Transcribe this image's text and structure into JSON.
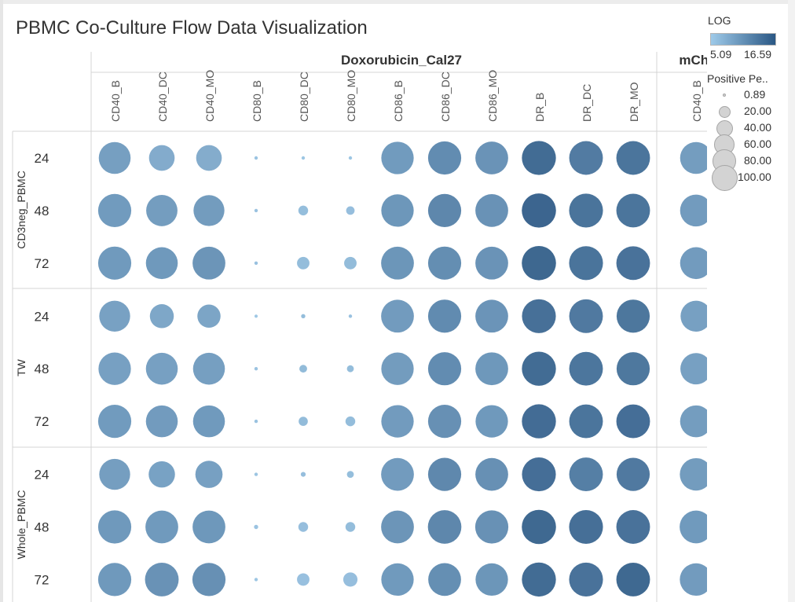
{
  "title": "PBMC Co-Culture Flow Data Visualization",
  "colors": {
    "low": "#9ecae9",
    "high": "#2a5784",
    "grid": "#d4d4d4",
    "legend_circle": "#d3d3d3"
  },
  "chart_data": {
    "type": "scatter",
    "subtype": "bubble-matrix",
    "panels": [
      {
        "header": "Doxorubicin_Cal27",
        "columns": [
          "CD40_B",
          "CD40_DC",
          "CD40_MO",
          "CD80_B",
          "CD80_DC",
          "CD80_MO",
          "CD86_B",
          "CD86_DC",
          "CD86_MO",
          "DR_B",
          "DR_DC",
          "DR_MO"
        ]
      },
      {
        "header": "mChe",
        "columns": [
          "CD40_B"
        ]
      }
    ],
    "row_groups": [
      {
        "label": "CD3neg_PBMC",
        "rows": [
          {
            "label": "24",
            "size": [
              85,
              55,
              55,
              1,
              1,
              1,
              88,
              92,
              90,
              97,
              95,
              95,
              85
            ],
            "log": [
              10.2,
              8.9,
              8.8,
              6.2,
              6.0,
              6.0,
              10.7,
              12.3,
              11.5,
              15.8,
              14.1,
              14.8,
              10.4
            ]
          },
          {
            "label": "48",
            "size": [
              92,
              82,
              80,
              1,
              8,
              6,
              88,
              92,
              90,
              98,
              96,
              95,
              85
            ],
            "log": [
              10.7,
              10.4,
              10.5,
              6.4,
              6.9,
              6.8,
              11.1,
              12.8,
              11.6,
              16.5,
              14.9,
              14.8,
              10.6
            ]
          },
          {
            "label": "72",
            "size": [
              92,
              85,
              90,
              1,
              13,
              13,
              90,
              92,
              90,
              98,
              96,
              95,
              85
            ],
            "log": [
              10.8,
              10.9,
              11.3,
              6.6,
              7.0,
              7.1,
              11.2,
              12.1,
              11.5,
              16.2,
              14.9,
              15.1,
              10.6
            ]
          }
        ]
      },
      {
        "label": "TW",
        "rows": [
          {
            "label": "24",
            "size": [
              80,
              48,
              45,
              0.89,
              1.5,
              1,
              90,
              92,
              90,
              96,
              95,
              92,
              80
            ],
            "log": [
              10.0,
              9.4,
              9.6,
              5.8,
              7.0,
              6.5,
              10.6,
              12.4,
              11.4,
              15.3,
              14.3,
              14.6,
              10.1
            ]
          },
          {
            "label": "48",
            "size": [
              88,
              85,
              85,
              1,
              5,
              4,
              88,
              92,
              90,
              97,
              95,
              92,
              82
            ],
            "log": [
              10.1,
              10.1,
              10.2,
              6.3,
              7.2,
              7.0,
              10.5,
              12.3,
              11.0,
              15.8,
              14.7,
              14.5,
              10.1
            ]
          },
          {
            "label": "72",
            "size": [
              92,
              85,
              85,
              1,
              7,
              8,
              88,
              92,
              88,
              97,
              95,
              95,
              85
            ],
            "log": [
              10.7,
              10.6,
              10.8,
              6.4,
              7.1,
              7.0,
              10.6,
              11.8,
              10.9,
              15.7,
              14.8,
              15.5,
              10.4
            ]
          }
        ]
      },
      {
        "label": "Whole_PBMC",
        "rows": [
          {
            "label": "24",
            "size": [
              80,
              58,
              62,
              1,
              2,
              4,
              90,
              92,
              90,
              96,
              95,
              92,
              88
            ],
            "log": [
              10.3,
              9.9,
              10.1,
              6.1,
              6.8,
              6.9,
              10.6,
              12.7,
              11.8,
              15.5,
              13.7,
              14.3,
              10.5
            ]
          },
          {
            "label": "48",
            "size": [
              92,
              90,
              90,
              1.5,
              8,
              8,
              90,
              94,
              92,
              98,
              96,
              95,
              90
            ],
            "log": [
              10.9,
              10.8,
              11.0,
              6.3,
              6.8,
              7.0,
              11.3,
              12.8,
              11.7,
              16.1,
              15.4,
              15.1,
              10.8
            ]
          },
          {
            "label": "72",
            "size": [
              92,
              95,
              92,
              1,
              13,
              17,
              88,
              90,
              88,
              97,
              96,
              95,
              88
            ],
            "log": [
              10.9,
              11.6,
              11.8,
              6.0,
              6.6,
              6.8,
              10.8,
              12.0,
              11.2,
              15.8,
              15.1,
              16.1,
              10.6
            ]
          }
        ]
      }
    ],
    "color_legend": {
      "title": "LOG",
      "min": 5.09,
      "max": 16.59
    },
    "size_legend": {
      "title": "Positive Pe..",
      "values": [
        0.89,
        20.0,
        40.0,
        60.0,
        80.0,
        100.0
      ],
      "labels": [
        "0.89",
        "20.00",
        "40.00",
        "60.00",
        "80.00",
        "100.00"
      ]
    }
  }
}
